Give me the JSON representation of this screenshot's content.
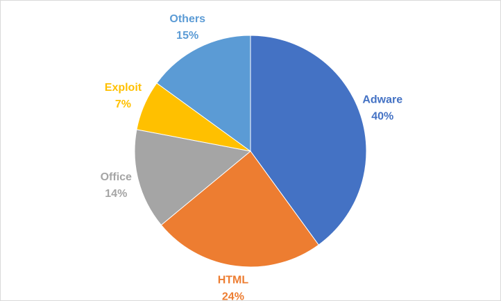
{
  "chart_data": {
    "type": "pie",
    "categories": [
      "Adware",
      "HTML",
      "Office",
      "Exploit",
      "Others"
    ],
    "values": [
      40,
      24,
      14,
      7,
      15
    ],
    "value_labels": [
      "40%",
      "24%",
      "14%",
      "7%",
      "15%"
    ],
    "colors": [
      "#4472c4",
      "#ed7d31",
      "#a5a5a5",
      "#ffc000",
      "#5b9bd5"
    ]
  }
}
